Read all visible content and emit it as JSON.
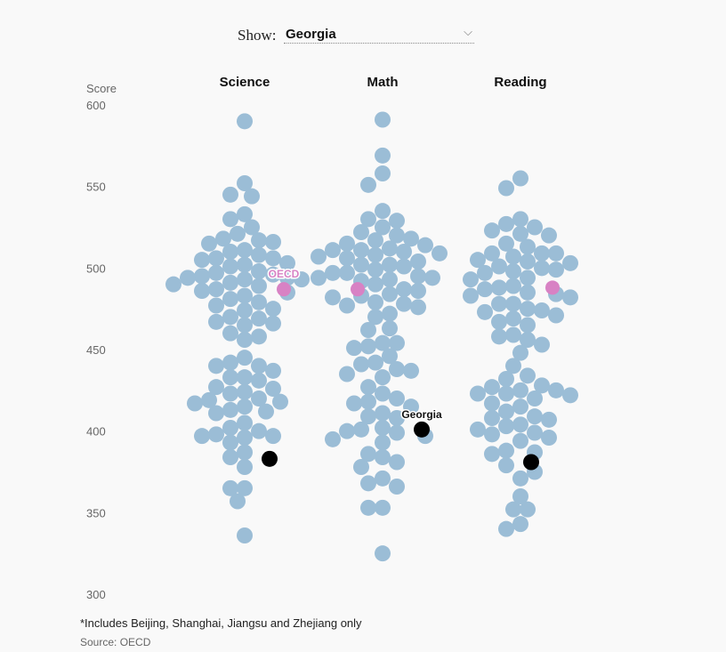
{
  "selector": {
    "label": "Show:",
    "selected": "Georgia",
    "chevron_icon": "chevron-down-icon"
  },
  "chart_data": {
    "type": "scatter",
    "subtype": "beeswarm",
    "ylabel": "Score",
    "ylim": [
      300,
      600
    ],
    "yticks": [
      600,
      550,
      500,
      450,
      400,
      350,
      300
    ],
    "grid": false,
    "colors": {
      "country": "#9bbdd6",
      "oecd": "#d882c4",
      "selected": "#000000"
    },
    "categories": [
      "Science",
      "Math",
      "Reading"
    ],
    "series": [
      {
        "name": "Science",
        "oecd": 487,
        "selected": 383,
        "values": [
          590,
          552,
          545,
          544,
          533,
          530,
          525,
          521,
          518,
          517,
          516,
          515,
          511,
          510,
          508,
          506,
          506,
          505,
          503,
          502,
          501,
          498,
          497,
          496,
          495,
          494,
          494,
          493,
          493,
          491,
          490,
          489,
          487,
          486,
          485,
          483,
          481,
          479,
          477,
          475,
          474,
          470,
          469,
          467,
          466,
          465,
          460,
          458,
          456,
          445,
          442,
          440,
          440,
          437,
          433,
          433,
          431,
          427,
          426,
          424,
          423,
          420,
          419,
          418,
          417,
          415,
          413,
          412,
          411,
          405,
          402,
          400,
          398,
          397,
          397,
          396,
          393,
          387,
          384,
          378,
          365,
          365,
          357,
          336
        ]
      },
      {
        "name": "Math",
        "oecd": 487,
        "selected": 401,
        "values": [
          591,
          569,
          558,
          551,
          535,
          530,
          529,
          525,
          522,
          520,
          518,
          517,
          515,
          514,
          512,
          511,
          511,
          510,
          509,
          508,
          507,
          506,
          504,
          502,
          502,
          501,
          499,
          497,
          497,
          495,
          494,
          494,
          493,
          492,
          490,
          487,
          486,
          484,
          483,
          482,
          479,
          478,
          477,
          476,
          472,
          470,
          463,
          462,
          454,
          454,
          452,
          451,
          446,
          442,
          441,
          438,
          437,
          435,
          433,
          427,
          423,
          420,
          418,
          417,
          415,
          411,
          409,
          408,
          402,
          401,
          400,
          399,
          397,
          395,
          393,
          386,
          384,
          381,
          378,
          371,
          368,
          366,
          353,
          353,
          325
        ]
      },
      {
        "name": "Reading",
        "oecd": 488,
        "selected": 381,
        "values": [
          555,
          549,
          530,
          527,
          525,
          523,
          521,
          520,
          515,
          513,
          509,
          509,
          509,
          507,
          505,
          504,
          503,
          501,
          500,
          499,
          498,
          497,
          494,
          493,
          489,
          488,
          487,
          485,
          484,
          483,
          482,
          478,
          478,
          475,
          474,
          473,
          471,
          469,
          467,
          465,
          459,
          458,
          456,
          453,
          448,
          440,
          434,
          432,
          428,
          427,
          425,
          425,
          423,
          423,
          422,
          420,
          417,
          415,
          412,
          409,
          408,
          407,
          404,
          403,
          401,
          399,
          398,
          396,
          394,
          388,
          387,
          386,
          379,
          375,
          371,
          360,
          352,
          352,
          343,
          340
        ]
      }
    ],
    "annotations": [
      {
        "series": "Science",
        "text": "OECD"
      },
      {
        "series": "Math",
        "text": "Georgia"
      }
    ]
  },
  "footnote": "*Includes Beijing, Shanghai, Jiangsu and Zhejiang only",
  "source": "Source: OECD"
}
